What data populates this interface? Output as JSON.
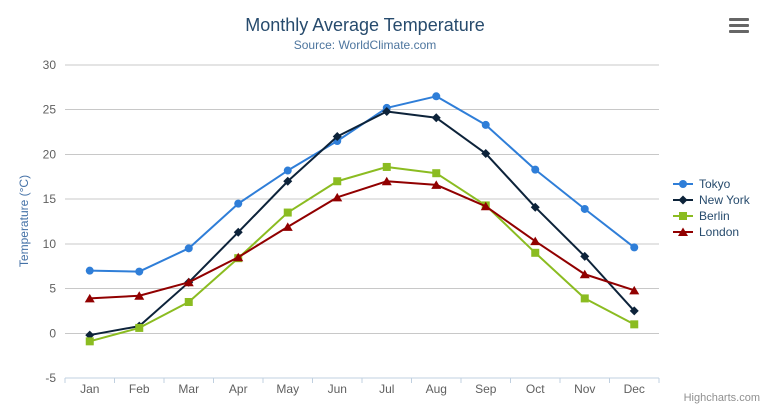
{
  "header": {
    "title": "Monthly Average Temperature",
    "subtitle": "Source: WorldClimate.com"
  },
  "y_axis": {
    "title": "Temperature (°C)"
  },
  "credits": "Highcharts.com",
  "chart_data": {
    "type": "line",
    "title": "Monthly Average Temperature",
    "subtitle": "Source: WorldClimate.com",
    "categories": [
      "Jan",
      "Feb",
      "Mar",
      "Apr",
      "May",
      "Jun",
      "Jul",
      "Aug",
      "Sep",
      "Oct",
      "Nov",
      "Dec"
    ],
    "series": [
      {
        "name": "Tokyo",
        "color": "#2f7ed8",
        "marker": "circle",
        "values": [
          7.0,
          6.9,
          9.5,
          14.5,
          18.2,
          21.5,
          25.2,
          26.5,
          23.3,
          18.3,
          13.9,
          9.6
        ]
      },
      {
        "name": "New York",
        "color": "#0d233a",
        "marker": "diamond",
        "values": [
          -0.2,
          0.8,
          5.7,
          11.3,
          17.0,
          22.0,
          24.8,
          24.1,
          20.1,
          14.1,
          8.6,
          2.5
        ]
      },
      {
        "name": "Berlin",
        "color": "#8bbc21",
        "marker": "square",
        "values": [
          -0.9,
          0.6,
          3.5,
          8.4,
          13.5,
          17.0,
          18.6,
          17.9,
          14.3,
          9.0,
          3.9,
          1.0
        ]
      },
      {
        "name": "London",
        "color": "#910000",
        "marker": "triangle",
        "values": [
          3.9,
          4.2,
          5.7,
          8.5,
          11.9,
          15.2,
          17.0,
          16.6,
          14.2,
          10.3,
          6.6,
          4.8
        ]
      }
    ],
    "xlabel": "",
    "ylabel": "Temperature (°C)",
    "ylim": [
      -5,
      30
    ],
    "y_tick_interval": 5,
    "legend_position": "right",
    "grid": "horizontal"
  },
  "theme": {
    "grid_color": "#c8c8c8",
    "axis_line_color": "#c0d0e0",
    "axis_label_color": "#606060",
    "title_color": "#274b6d",
    "subtitle_color": "#4d759e",
    "y_axis_title_color": "#4572a7",
    "legend_text_color": "#274b6d",
    "credits_color": "#909090"
  }
}
